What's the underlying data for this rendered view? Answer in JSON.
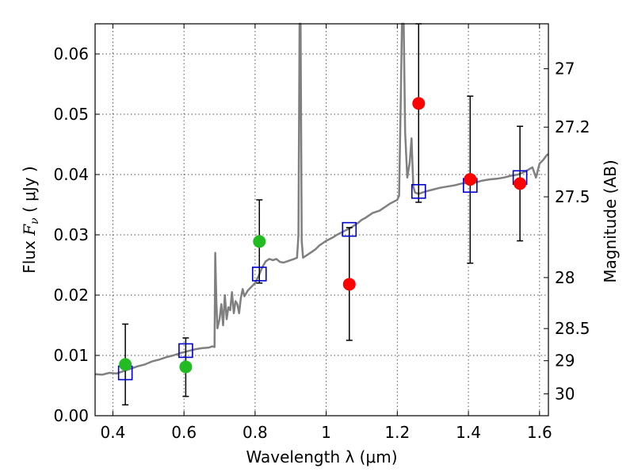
{
  "chart_data": {
    "type": "scatter",
    "xlabel": "Wavelength  λ (μm)",
    "ylabel": "Flux  F_ν  ( μJy )",
    "ylabel_parts": {
      "prefix": "Flux  ",
      "symbol": "F",
      "subscript": "ν",
      "units": "  ( μJy )"
    },
    "y2label": "Magnitude (AB)",
    "xlim": [
      0.35,
      1.625
    ],
    "ylim": [
      0.0,
      0.065
    ],
    "grid": true,
    "x_ticks": [
      {
        "value": 0.4,
        "label": "0.4"
      },
      {
        "value": 0.6,
        "label": "0.6"
      },
      {
        "value": 0.8,
        "label": "0.8"
      },
      {
        "value": 1.0,
        "label": "1"
      },
      {
        "value": 1.2,
        "label": "1.2"
      },
      {
        "value": 1.4,
        "label": "1.4"
      },
      {
        "value": 1.6,
        "label": "1.6"
      }
    ],
    "y_ticks": [
      {
        "value": 0.0,
        "label": "0.00"
      },
      {
        "value": 0.01,
        "label": "0.01"
      },
      {
        "value": 0.02,
        "label": "0.02"
      },
      {
        "value": 0.03,
        "label": "0.03"
      },
      {
        "value": 0.04,
        "label": "0.04"
      },
      {
        "value": 0.05,
        "label": "0.05"
      },
      {
        "value": 0.06,
        "label": "0.06"
      }
    ],
    "y2_ticks": [
      {
        "value": 27,
        "label": "27"
      },
      {
        "value": 27.2,
        "label": "27.2"
      },
      {
        "value": 27.5,
        "label": "27.5"
      },
      {
        "value": 28,
        "label": "28"
      },
      {
        "value": 28.5,
        "label": "28.5"
      },
      {
        "value": 29,
        "label": "29"
      },
      {
        "value": 30,
        "label": "30"
      }
    ],
    "colors": {
      "spectrum": "#808080",
      "model_box": "#0000cc",
      "detection": "#22bb22",
      "measurement": "#ff0000",
      "errorbar": "#000000"
    },
    "spectrum": [
      [
        0.35,
        0.0069
      ],
      [
        0.37,
        0.0068
      ],
      [
        0.39,
        0.0071
      ],
      [
        0.41,
        0.007
      ],
      [
        0.43,
        0.0074
      ],
      [
        0.45,
        0.0078
      ],
      [
        0.47,
        0.0082
      ],
      [
        0.49,
        0.0085
      ],
      [
        0.51,
        0.009
      ],
      [
        0.53,
        0.0093
      ],
      [
        0.55,
        0.0097
      ],
      [
        0.57,
        0.01
      ],
      [
        0.59,
        0.0104
      ],
      [
        0.61,
        0.0107
      ],
      [
        0.63,
        0.011
      ],
      [
        0.65,
        0.0112
      ],
      [
        0.67,
        0.0113
      ],
      [
        0.68,
        0.0115
      ],
      [
        0.686,
        0.0114
      ],
      [
        0.688,
        0.027
      ],
      [
        0.691,
        0.019
      ],
      [
        0.694,
        0.0145
      ],
      [
        0.7,
        0.016
      ],
      [
        0.705,
        0.0185
      ],
      [
        0.71,
        0.015
      ],
      [
        0.715,
        0.02
      ],
      [
        0.72,
        0.016
      ],
      [
        0.725,
        0.018
      ],
      [
        0.73,
        0.0175
      ],
      [
        0.735,
        0.0205
      ],
      [
        0.74,
        0.017
      ],
      [
        0.745,
        0.019
      ],
      [
        0.75,
        0.0185
      ],
      [
        0.755,
        0.017
      ],
      [
        0.76,
        0.0195
      ],
      [
        0.765,
        0.021
      ],
      [
        0.77,
        0.0198
      ],
      [
        0.78,
        0.0208
      ],
      [
        0.79,
        0.0214
      ],
      [
        0.8,
        0.022
      ],
      [
        0.81,
        0.0232
      ],
      [
        0.82,
        0.0246
      ],
      [
        0.83,
        0.0256
      ],
      [
        0.84,
        0.026
      ],
      [
        0.85,
        0.0258
      ],
      [
        0.86,
        0.026
      ],
      [
        0.87,
        0.0255
      ],
      [
        0.88,
        0.0254
      ],
      [
        0.89,
        0.0256
      ],
      [
        0.9,
        0.0258
      ],
      [
        0.91,
        0.026
      ],
      [
        0.918,
        0.0262
      ],
      [
        0.922,
        0.03
      ],
      [
        0.925,
        0.065
      ],
      [
        0.928,
        0.065
      ],
      [
        0.931,
        0.029
      ],
      [
        0.935,
        0.0262
      ],
      [
        0.95,
        0.0268
      ],
      [
        0.96,
        0.0272
      ],
      [
        0.97,
        0.0276
      ],
      [
        0.98,
        0.0282
      ],
      [
        0.99,
        0.0286
      ],
      [
        1.0,
        0.029
      ],
      [
        1.01,
        0.0293
      ],
      [
        1.02,
        0.0296
      ],
      [
        1.03,
        0.03
      ],
      [
        1.04,
        0.0303
      ],
      [
        1.05,
        0.0306
      ],
      [
        1.06,
        0.0309
      ],
      [
        1.07,
        0.0312
      ],
      [
        1.08,
        0.0316
      ],
      [
        1.09,
        0.032
      ],
      [
        1.1,
        0.0325
      ],
      [
        1.11,
        0.0328
      ],
      [
        1.12,
        0.0332
      ],
      [
        1.13,
        0.0336
      ],
      [
        1.14,
        0.0338
      ],
      [
        1.15,
        0.034
      ],
      [
        1.16,
        0.0344
      ],
      [
        1.17,
        0.0348
      ],
      [
        1.18,
        0.0352
      ],
      [
        1.19,
        0.0355
      ],
      [
        1.2,
        0.0358
      ],
      [
        1.205,
        0.0365
      ],
      [
        1.21,
        0.053
      ],
      [
        1.213,
        0.065
      ],
      [
        1.218,
        0.065
      ],
      [
        1.222,
        0.047
      ],
      [
        1.228,
        0.0395
      ],
      [
        1.235,
        0.042
      ],
      [
        1.24,
        0.046
      ],
      [
        1.245,
        0.038
      ],
      [
        1.25,
        0.037
      ],
      [
        1.26,
        0.0368
      ],
      [
        1.28,
        0.0372
      ],
      [
        1.3,
        0.0375
      ],
      [
        1.32,
        0.0378
      ],
      [
        1.34,
        0.038
      ],
      [
        1.36,
        0.0382
      ],
      [
        1.38,
        0.0385
      ],
      [
        1.4,
        0.0386
      ],
      [
        1.42,
        0.0387
      ],
      [
        1.44,
        0.039
      ],
      [
        1.46,
        0.0392
      ],
      [
        1.48,
        0.0393
      ],
      [
        1.5,
        0.0395
      ],
      [
        1.52,
        0.0398
      ],
      [
        1.54,
        0.04
      ],
      [
        1.56,
        0.0405
      ],
      [
        1.58,
        0.0412
      ],
      [
        1.59,
        0.0395
      ],
      [
        1.6,
        0.0418
      ],
      [
        1.61,
        0.0424
      ],
      [
        1.62,
        0.0432
      ],
      [
        1.625,
        0.0434
      ]
    ],
    "series": [
      {
        "marker": "square",
        "points": [
          {
            "x": 0.435,
            "y": 0.0071
          },
          {
            "x": 0.605,
            "y": 0.0108
          },
          {
            "x": 0.812,
            "y": 0.0235
          },
          {
            "x": 1.065,
            "y": 0.0309
          },
          {
            "x": 1.26,
            "y": 0.0372
          },
          {
            "x": 1.405,
            "y": 0.0382
          },
          {
            "x": 1.545,
            "y": 0.0395
          }
        ]
      },
      {
        "marker": "circle-green",
        "points": [
          {
            "x": 0.435,
            "y": 0.0085,
            "ylow": 0.0018,
            "yhigh": 0.0152
          },
          {
            "x": 0.605,
            "y": 0.0081,
            "ylow": 0.0032,
            "yhigh": 0.0129
          },
          {
            "x": 0.812,
            "y": 0.0289,
            "ylow": 0.022,
            "yhigh": 0.0358
          }
        ]
      },
      {
        "marker": "circle-red",
        "points": [
          {
            "x": 1.065,
            "y": 0.0218,
            "ylow": 0.0125,
            "yhigh": 0.0312
          },
          {
            "x": 1.26,
            "y": 0.0518,
            "ylow": 0.0354,
            "yhigh": 0.065
          },
          {
            "x": 1.405,
            "y": 0.0392,
            "ylow": 0.0253,
            "yhigh": 0.053
          },
          {
            "x": 1.545,
            "y": 0.0385,
            "ylow": 0.029,
            "yhigh": 0.048
          }
        ]
      }
    ]
  }
}
